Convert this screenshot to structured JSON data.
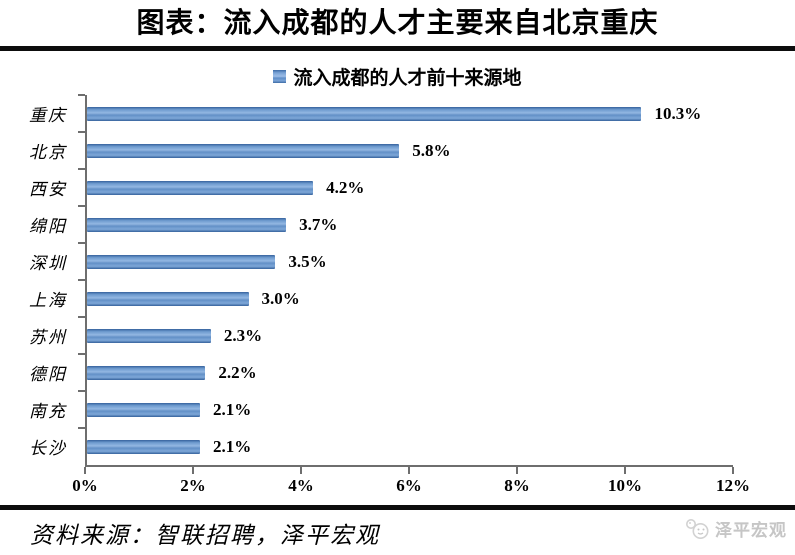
{
  "title": "图表：流入成都的人才主要来自北京重庆",
  "legend": "流入成都的人才前十来源地",
  "source": "资料来源：智联招聘，泽平宏观",
  "logo_text": "泽平宏观",
  "colors": {
    "bar_main": "#4f81bd",
    "bar_light": "#93b7e2",
    "bar_dark": "#35619c",
    "axis": "#6e6e6e",
    "rule": "#0d0d0d",
    "logo_gray": "#c6c6c6"
  },
  "chart_data": {
    "type": "bar",
    "orientation": "horizontal",
    "title": "流入成都的人才前十来源地",
    "categories": [
      "重庆",
      "北京",
      "西安",
      "绵阳",
      "深圳",
      "上海",
      "苏州",
      "德阳",
      "南充",
      "长沙"
    ],
    "values": [
      10.3,
      5.8,
      4.2,
      3.7,
      3.5,
      3.0,
      2.3,
      2.2,
      2.1,
      2.1
    ],
    "value_labels": [
      "10.3%",
      "5.8%",
      "4.2%",
      "3.7%",
      "3.5%",
      "3.0%",
      "2.3%",
      "2.2%",
      "2.1%",
      "2.1%"
    ],
    "xlim": [
      0,
      12
    ],
    "x_ticks": [
      0,
      2,
      4,
      6,
      8,
      10,
      12
    ],
    "x_tick_labels": [
      "0%",
      "2%",
      "4%",
      "6%",
      "8%",
      "10%",
      "12%"
    ],
    "grid": false,
    "legend_position": "top-center"
  }
}
